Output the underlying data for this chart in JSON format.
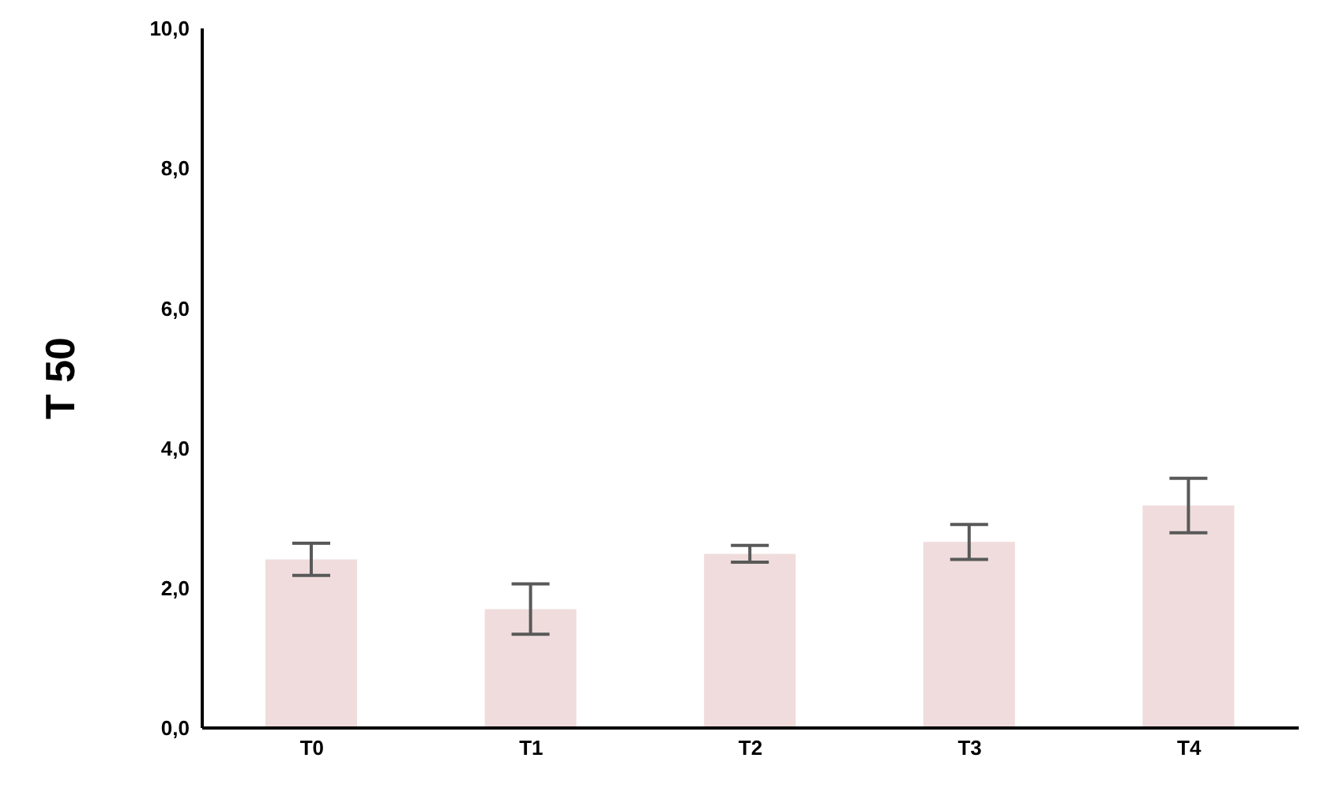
{
  "chart_data": {
    "type": "bar",
    "ylabel": "T 50",
    "categories": [
      "T0",
      "T1",
      "T2",
      "T3",
      "T4"
    ],
    "values": [
      2.41,
      1.7,
      2.49,
      2.66,
      3.18
    ],
    "errors": [
      0.23,
      0.36,
      0.12,
      0.25,
      0.39
    ],
    "color": "#f0dcdc",
    "ylim": [
      0,
      10
    ],
    "yticks": [
      {
        "value": 0,
        "label": "0,0"
      },
      {
        "value": 2,
        "label": "2,0"
      },
      {
        "value": 4,
        "label": "4,0"
      },
      {
        "value": 6,
        "label": "6,0"
      },
      {
        "value": 8,
        "label": "8,0"
      },
      {
        "value": 10,
        "label": "10,0"
      }
    ],
    "grid": false,
    "legend": false
  }
}
